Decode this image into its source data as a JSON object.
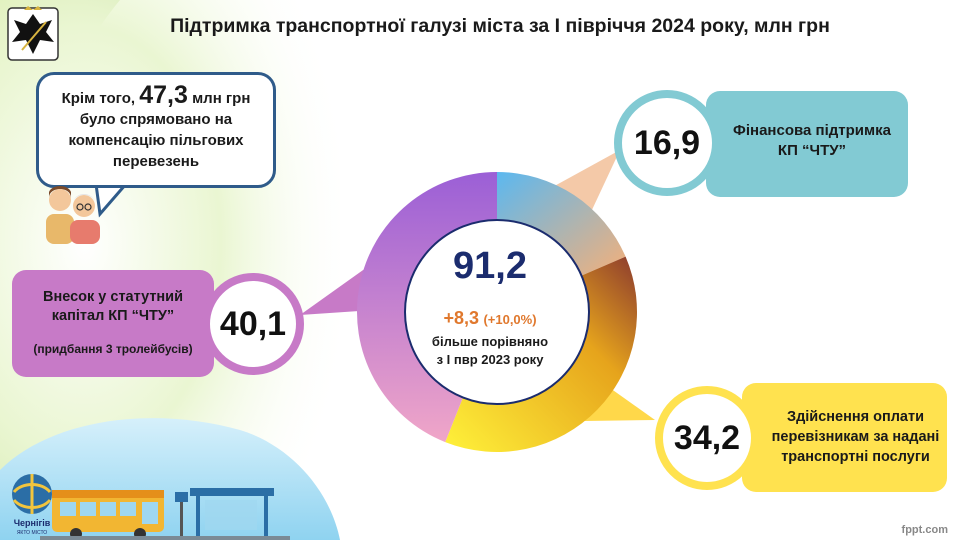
{
  "title": "Підтримка транспортної галузі міста за І півріччя 2024 року, млн грн",
  "speech": {
    "prefix": "Крім того,",
    "amount": "47,3",
    "unit": "млн грн",
    "line2": "було спрямовано на",
    "line3": "компенсацію пільгових",
    "line4": "перевезень"
  },
  "segments": {
    "left": {
      "value_label": "40,1",
      "line1": "Внесок у статутний",
      "line2": "капітал КП “ЧТУ”",
      "note": "(придбання 3 тролейбусів)"
    },
    "top": {
      "value_label": "16,9",
      "line1": "Фінансова підтримка",
      "line2": "КП “ЧТУ”"
    },
    "bottom": {
      "value_label": "34,2",
      "line1": "Здійснення оплати",
      "line2": "перевізникам за надані",
      "line3": "транспортні послуги"
    }
  },
  "center": {
    "total": "91,2",
    "change": "+8,3",
    "change_pct": "(+10,0%)",
    "note1": "більше порівняно",
    "note2": "з І пвр 2023 року"
  },
  "city_logo": {
    "name": "Чернігів",
    "tagline": "ЯКТО МІСТО"
  },
  "watermark": "fppt.com",
  "colors": {
    "purple": "#c77ac7",
    "teal": "#82cad3",
    "yellow": "#ffe24f",
    "brown": "#8b3a2e",
    "navy": "#1b2c6e",
    "orange": "#e0782d",
    "green": "#9ccc4a"
  },
  "chart_data": {
    "type": "pie",
    "donut": true,
    "categories": [
      "Фінансова підтримка КП “ЧТУ”",
      "Здійснення оплати перевізникам за надані транспортні послуги",
      "Внесок у статутний капітал КП “ЧТУ”"
    ],
    "values": [
      16.9,
      34.2,
      40.1
    ],
    "total": 91.2,
    "unit": "млн грн"
  }
}
